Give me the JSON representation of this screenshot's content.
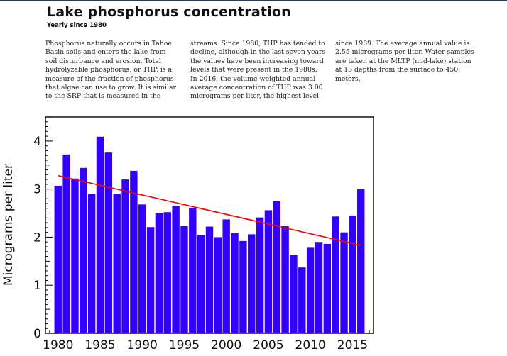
{
  "header": {
    "title": "Lake phosphorus concentration",
    "subtitle": "Yearly since 1980"
  },
  "text_columns": [
    {
      "lines": [
        "Phosphorus naturally occurs in Tahoe",
        "Basin soils and enters the lake from",
        "soil disturbance and erosion. Total",
        "hydrolyzable phosphorus, or THP, is a",
        "measure of the fraction of phosphorus",
        "that algae can use to grow. It is similar",
        "to the SRP that is measured in the"
      ]
    },
    {
      "lines": [
        "streams. Since 1980, THP has tended to",
        "decline, although in the last seven years",
        "the values have been increasing toward",
        "levels that were present in the 1980s.",
        "In 2016, the volume-weighted annual",
        "average concentration of THP was 3.00",
        "micrograms per liter, the highest level"
      ]
    },
    {
      "lines": [
        "since 1989. The average annual value is",
        "2.55 micrograms per liter. Water samples",
        "are taken at the MLTP (mid-lake) station",
        "at 13 depths from the surface to 450",
        "meters."
      ]
    }
  ],
  "chart_data": {
    "type": "bar",
    "title": "",
    "xlabel": "",
    "ylabel": "Micrograms per liter",
    "xlim": [
      1978.5,
      2017.5
    ],
    "ylim": [
      0,
      4.5
    ],
    "x_ticks": [
      1980,
      1985,
      1990,
      1995,
      2000,
      2005,
      2010,
      2015
    ],
    "y_ticks": [
      0,
      1,
      2,
      3,
      4
    ],
    "categories": [
      1980,
      1981,
      1982,
      1983,
      1984,
      1985,
      1986,
      1987,
      1988,
      1989,
      1990,
      1991,
      1992,
      1993,
      1994,
      1995,
      1996,
      1997,
      1998,
      1999,
      2000,
      2001,
      2002,
      2003,
      2004,
      2005,
      2006,
      2007,
      2008,
      2009,
      2010,
      2011,
      2012,
      2013,
      2014,
      2015,
      2016
    ],
    "values": [
      3.07,
      3.72,
      3.22,
      3.44,
      2.9,
      4.09,
      3.76,
      2.9,
      3.2,
      3.38,
      2.68,
      2.21,
      2.5,
      2.52,
      2.65,
      2.23,
      2.6,
      2.05,
      2.22,
      2.0,
      2.37,
      2.08,
      1.92,
      2.06,
      2.41,
      2.56,
      2.75,
      2.23,
      1.63,
      1.37,
      1.78,
      1.9,
      1.86,
      2.43,
      2.1,
      2.45,
      3.0
    ],
    "trend": {
      "x": [
        1980,
        2016
      ],
      "y": [
        3.28,
        1.83
      ]
    },
    "bar_color": "#3300ff",
    "trend_color": "#ff0000",
    "grid": false
  }
}
